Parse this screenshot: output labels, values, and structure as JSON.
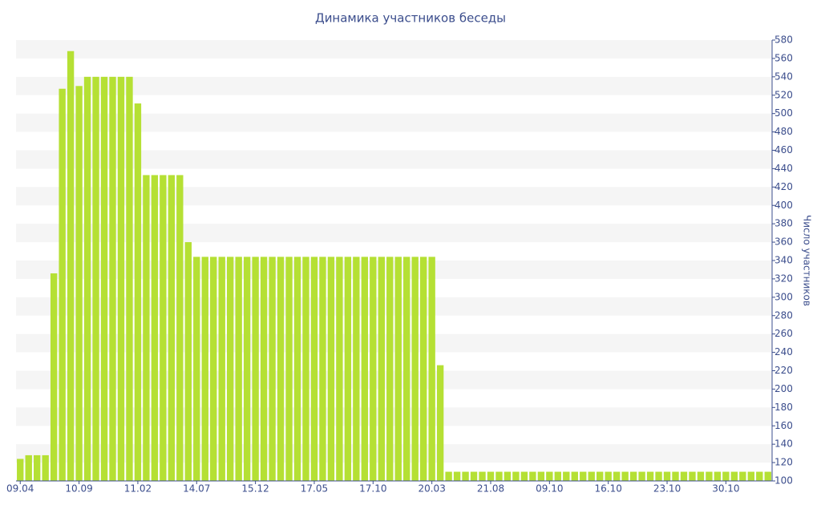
{
  "chart_data": {
    "type": "bar",
    "title": "Динамика участников беседы",
    "y_label": "Число участников",
    "categories": [
      "09.04",
      null,
      null,
      null,
      null,
      null,
      null,
      "10.09",
      null,
      null,
      null,
      null,
      null,
      null,
      "11.02",
      null,
      null,
      null,
      null,
      null,
      null,
      "14.07",
      null,
      null,
      null,
      null,
      null,
      null,
      "15.12",
      null,
      null,
      null,
      null,
      null,
      null,
      "17.05",
      null,
      null,
      null,
      null,
      null,
      null,
      "17.10",
      null,
      null,
      null,
      null,
      null,
      null,
      "20.03",
      null,
      null,
      null,
      null,
      null,
      null,
      "21.08",
      null,
      null,
      null,
      null,
      null,
      null,
      "09.10",
      null,
      null,
      null,
      null,
      null,
      null,
      "16.10",
      null,
      null,
      null,
      null,
      null,
      null,
      "23.10",
      null,
      null,
      null,
      null,
      null,
      null,
      "30.10",
      null,
      null,
      null,
      null,
      null
    ],
    "values": [
      124,
      128,
      128,
      128,
      326,
      527,
      568,
      530,
      540,
      540,
      540,
      540,
      540,
      540,
      511,
      433,
      433,
      433,
      433,
      433,
      360,
      344,
      344,
      344,
      344,
      344,
      344,
      344,
      344,
      344,
      344,
      344,
      344,
      344,
      344,
      344,
      344,
      344,
      344,
      344,
      344,
      344,
      344,
      344,
      344,
      344,
      344,
      344,
      344,
      344,
      226,
      110,
      110,
      110,
      110,
      110,
      110,
      110,
      110,
      110,
      110,
      110,
      110,
      110,
      110,
      110,
      110,
      110,
      110,
      110,
      110,
      110,
      110,
      110,
      110,
      110,
      110,
      110,
      110,
      110,
      110,
      110,
      110,
      110,
      110,
      110,
      110,
      110,
      110,
      110
    ],
    "color": "#b5e034",
    "ylim": [
      100,
      580
    ],
    "yticks": [
      100,
      120,
      140,
      160,
      180,
      200,
      220,
      240,
      260,
      280,
      300,
      320,
      340,
      360,
      380,
      400,
      420,
      440,
      460,
      480,
      500,
      520,
      540,
      560,
      580
    ],
    "grid": true
  }
}
